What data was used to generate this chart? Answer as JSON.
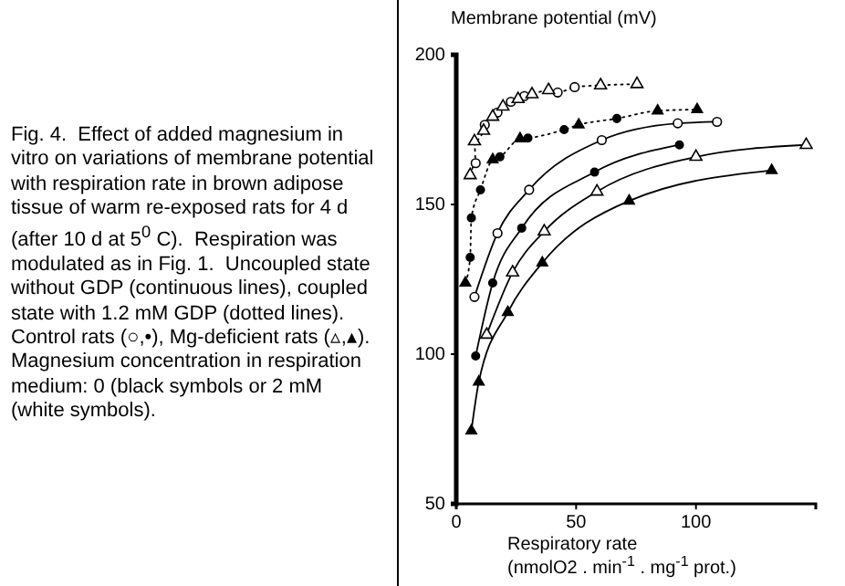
{
  "chart_data": {
    "type": "line",
    "ylabel": "Membrane potential (mV)",
    "xlabel": "Respiratory rate\n(nmolO2 . min$^{-1}$ . mg$^{-1}$ prot.)",
    "annotations": [
      "Fig. 4.  Effect of added magnesium in vitro on variations of membrane potential with respiration rate in brown adipose tissue of warm re-exposed rats for 4 d (after 10 d at 5$^{0}$ C).  Respiration was modulated as in Fig. 1.  Uncoupled state without GDP (continuous lines), coupled state with 1.2 mM GDP (dotted lines).  Control rats (○,•), Mg-deficient rats (▵,▴). Magnesium concentration in respiration medium: 0 (black symbols or 2 mM (white symbols)."
    ],
    "xlim": [
      0,
      150
    ],
    "xticks": [
      0,
      50,
      100,
      {
        "value": 150,
        "label": null
      }
    ],
    "ylim": [
      50,
      200
    ],
    "yticks": [
      50,
      100,
      150,
      200
    ],
    "grid": false,
    "series": [
      {
        "line_style": "dotted",
        "marker": "none",
        "color": "#000000",
        "x": [
          5.8,
          8.1,
          7.6,
          11.4,
          11.9,
          15.2,
          17.2,
          19.5,
          22.8,
          25.8,
          28.4,
          31.6,
          38.5,
          42.3,
          49.4,
          60.2,
          75.4
        ],
        "values": [
          159.8,
          163.8,
          171.1,
          174.6,
          176.6,
          179.3,
          180.7,
          182.7,
          184.3,
          185.2,
          186.2,
          186.8,
          188.2,
          187.4,
          189.2,
          189.8,
          190.2
        ]
      },
      {
        "type": "scatter",
        "marker": "circle",
        "color": "#ffffff",
        "x": [
          8.1,
          11.9,
          17.2,
          22.8,
          28.4,
          42.3,
          49.4
        ],
        "values": [
          163.8,
          176.6,
          180.7,
          184.3,
          186.2,
          187.4,
          189.2
        ]
      },
      {
        "type": "scatter",
        "marker": "triangle",
        "color": "#ffffff",
        "x": [
          5.8,
          7.6,
          11.4,
          15.2,
          19.5,
          25.8,
          31.6,
          38.5,
          60.2,
          75.4
        ],
        "values": [
          159.8,
          171.1,
          174.6,
          179.3,
          182.7,
          185.2,
          186.8,
          188.2,
          189.8,
          190.2
        ]
      },
      {
        "line_style": "dotted",
        "marker": "none",
        "color": "#000000",
        "x": [
          3.8,
          5.8,
          6.3,
          10.1,
          15.2,
          18.2,
          26.6,
          29.9,
          45.0,
          51.1,
          67.0,
          84.0,
          100.5
        ],
        "values": [
          123.8,
          132.3,
          145.5,
          154.9,
          165.0,
          165.9,
          172.0,
          172.2,
          175.0,
          176.6,
          178.7,
          181.3,
          181.7
        ]
      },
      {
        "type": "scatter",
        "marker": "circle",
        "color": "#000000",
        "x": [
          5.8,
          6.3,
          10.1,
          18.2,
          29.9,
          45.0,
          67.0
        ],
        "values": [
          132.3,
          145.5,
          154.9,
          165.9,
          172.2,
          175.0,
          178.7
        ]
      },
      {
        "type": "scatter",
        "marker": "triangle",
        "color": "#000000",
        "x": [
          3.8,
          15.2,
          26.6,
          51.1,
          84.0,
          100.5
        ],
        "values": [
          123.8,
          165.0,
          172.0,
          176.6,
          181.3,
          181.7
        ]
      },
      {
        "type": "line",
        "line_style": "solid",
        "marker": "circle",
        "color": "#ffffff",
        "x": [
          7.6,
          17.2,
          30.4,
          60.7,
          92.4,
          108.8
        ],
        "values": [
          119.1,
          140.4,
          154.9,
          171.5,
          177.1,
          177.6
        ]
      },
      {
        "type": "line",
        "line_style": "solid",
        "marker": "circle",
        "color": "#000000",
        "x": [
          8.1,
          15.2,
          27.3,
          57.7,
          93.1
        ],
        "values": [
          99.4,
          123.8,
          142.1,
          160.8,
          169.9
        ]
      },
      {
        "type": "line",
        "line_style": "solid",
        "marker": "triangle",
        "color": "#ffffff",
        "x": [
          12.7,
          23.5,
          36.7,
          58.7,
          100,
          146.0
        ],
        "values": [
          106.5,
          127.3,
          141.0,
          154.3,
          165.9,
          169.9
        ]
      },
      {
        "type": "line",
        "line_style": "solid",
        "marker": "triangle",
        "color": "#000000",
        "x": [
          6.3,
          9.4,
          21.5,
          35.9,
          72.1,
          131.6
        ],
        "values": [
          74.4,
          90.7,
          114.0,
          130.5,
          151.2,
          161.4
        ]
      }
    ]
  }
}
